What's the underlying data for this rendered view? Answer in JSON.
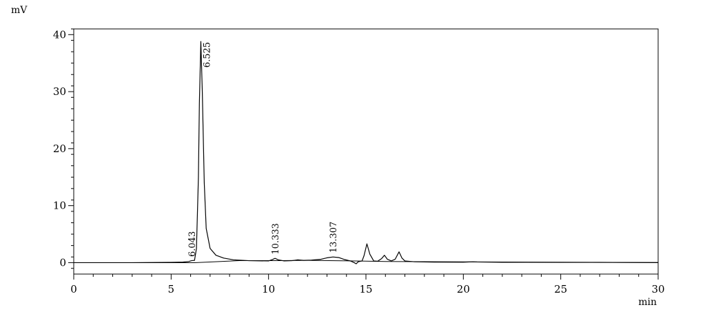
{
  "chart_data": {
    "type": "line",
    "title": "",
    "xlabel": "min",
    "ylabel": "mV",
    "xlim": [
      0,
      30
    ],
    "ylim": [
      -2,
      41
    ],
    "grid": false,
    "x_ticks": [
      "0",
      "5",
      "10",
      "15",
      "20",
      "25",
      "30"
    ],
    "y_ticks": [
      "0",
      "10",
      "20",
      "30",
      "40"
    ],
    "x_tick_values": [
      0,
      5,
      10,
      15,
      20,
      25,
      30
    ],
    "y_tick_values": [
      0,
      10,
      20,
      30,
      40
    ],
    "line_color": "#000000",
    "peaks": [
      {
        "label": "6.043",
        "x": 6.043,
        "y": 0.3
      },
      {
        "label": "6.525",
        "x": 6.525,
        "y": 38.8
      },
      {
        "label": "10.333",
        "x": 10.333,
        "y": 0.7
      },
      {
        "label": "13.307",
        "x": 13.307,
        "y": 1.0
      }
    ],
    "series": [
      {
        "name": "",
        "points": [
          [
            0.0,
            0.0
          ],
          [
            3.0,
            0.0
          ],
          [
            5.0,
            0.05
          ],
          [
            5.6,
            0.1
          ],
          [
            5.9,
            0.2
          ],
          [
            6.043,
            0.35
          ],
          [
            6.2,
            0.4
          ],
          [
            6.3,
            2.5
          ],
          [
            6.4,
            15.0
          ],
          [
            6.45,
            28.0
          ],
          [
            6.525,
            38.8
          ],
          [
            6.6,
            30.0
          ],
          [
            6.7,
            14.0
          ],
          [
            6.8,
            6.0
          ],
          [
            7.0,
            2.5
          ],
          [
            7.3,
            1.3
          ],
          [
            7.7,
            0.8
          ],
          [
            8.2,
            0.5
          ],
          [
            9.0,
            0.35
          ],
          [
            10.0,
            0.3
          ],
          [
            10.2,
            0.55
          ],
          [
            10.333,
            0.75
          ],
          [
            10.5,
            0.5
          ],
          [
            10.8,
            0.3
          ],
          [
            11.2,
            0.35
          ],
          [
            11.5,
            0.5
          ],
          [
            11.8,
            0.4
          ],
          [
            12.2,
            0.45
          ],
          [
            12.7,
            0.6
          ],
          [
            13.0,
            0.85
          ],
          [
            13.307,
            1.0
          ],
          [
            13.6,
            0.9
          ],
          [
            13.9,
            0.55
          ],
          [
            14.2,
            0.3
          ],
          [
            14.4,
            0.0
          ],
          [
            14.5,
            -0.2
          ],
          [
            14.6,
            0.15
          ],
          [
            14.8,
            0.3
          ],
          [
            14.9,
            1.2
          ],
          [
            15.05,
            3.3
          ],
          [
            15.2,
            1.5
          ],
          [
            15.4,
            0.3
          ],
          [
            15.6,
            0.25
          ],
          [
            15.8,
            0.7
          ],
          [
            15.95,
            1.3
          ],
          [
            16.1,
            0.6
          ],
          [
            16.3,
            0.3
          ],
          [
            16.5,
            0.6
          ],
          [
            16.7,
            1.9
          ],
          [
            16.85,
            0.8
          ],
          [
            17.0,
            0.3
          ],
          [
            17.5,
            0.15
          ],
          [
            18.5,
            0.1
          ],
          [
            20.0,
            0.08
          ],
          [
            20.5,
            0.15
          ],
          [
            20.7,
            0.12
          ],
          [
            22.0,
            0.07
          ],
          [
            25.0,
            0.05
          ],
          [
            27.0,
            0.05
          ],
          [
            30.0,
            0.03
          ]
        ]
      }
    ],
    "baseline": [
      [
        0.0,
        0.0
      ],
      [
        6.2,
        0.0
      ],
      [
        8.5,
        0.35
      ],
      [
        10.5,
        0.35
      ],
      [
        12.0,
        0.4
      ],
      [
        14.5,
        0.3
      ],
      [
        16.0,
        0.2
      ],
      [
        30.0,
        0.0
      ]
    ]
  }
}
